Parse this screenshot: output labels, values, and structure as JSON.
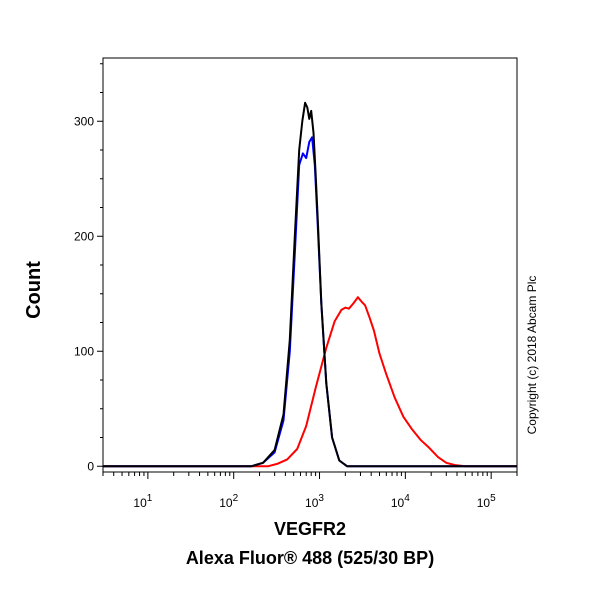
{
  "chart_data": {
    "type": "line",
    "title": "",
    "xlabel": "VEGFR2",
    "xlabel_line2": "Alexa Fluor® 488 (525/30 BP)",
    "ylabel": "Count",
    "x_scale": "log",
    "xlim": [
      3,
      200000
    ],
    "ylim": [
      -5,
      355
    ],
    "y_ticks": [
      "0",
      "100",
      "200",
      "300"
    ],
    "y_tick_values": [
      0,
      100,
      200,
      300
    ],
    "x_ticks": [
      {
        "base": "10",
        "exp": "1",
        "value": 10
      },
      {
        "base": "10",
        "exp": "2",
        "value": 100
      },
      {
        "base": "10",
        "exp": "3",
        "value": 1000
      },
      {
        "base": "10",
        "exp": "4",
        "value": 10000
      },
      {
        "base": "10",
        "exp": "5",
        "value": 100000
      }
    ],
    "grid": false,
    "legend": "none",
    "annotation": "Copyright (c) 2018 Abcam Plc",
    "series": [
      {
        "color": "#ff0000",
        "x": [
          3,
          250,
          320,
          420,
          550,
          700,
          900,
          1200,
          1500,
          1800,
          2000,
          2200,
          2500,
          2800,
          3100,
          3400,
          3800,
          4300,
          5000,
          6000,
          7500,
          9500,
          12000,
          15000,
          19000,
          24000,
          30000,
          38000,
          50000,
          200000
        ],
        "y": [
          0,
          0,
          2,
          6,
          15,
          35,
          68,
          103,
          126,
          136,
          138,
          137,
          142,
          147,
          143,
          140,
          130,
          118,
          98,
          80,
          60,
          43,
          32,
          23,
          16,
          8,
          3,
          1,
          0,
          0
        ]
      },
      {
        "color": "#0000ff",
        "x": [
          3,
          160,
          220,
          300,
          380,
          450,
          520,
          580,
          640,
          700,
          760,
          820,
          880,
          950,
          1050,
          1200,
          1400,
          1700,
          2100,
          200000
        ],
        "y": [
          0,
          0,
          3,
          12,
          40,
          100,
          190,
          262,
          272,
          268,
          282,
          286,
          262,
          212,
          142,
          72,
          25,
          5,
          0,
          0
        ]
      },
      {
        "color": "#000000",
        "x": [
          3,
          160,
          220,
          300,
          380,
          450,
          520,
          580,
          630,
          680,
          720,
          760,
          800,
          850,
          900,
          960,
          1050,
          1200,
          1400,
          1700,
          2100,
          200000
        ],
        "y": [
          0,
          0,
          3,
          14,
          45,
          110,
          205,
          275,
          300,
          316,
          312,
          302,
          309,
          290,
          255,
          210,
          142,
          72,
          25,
          5,
          0,
          0
        ]
      }
    ]
  }
}
